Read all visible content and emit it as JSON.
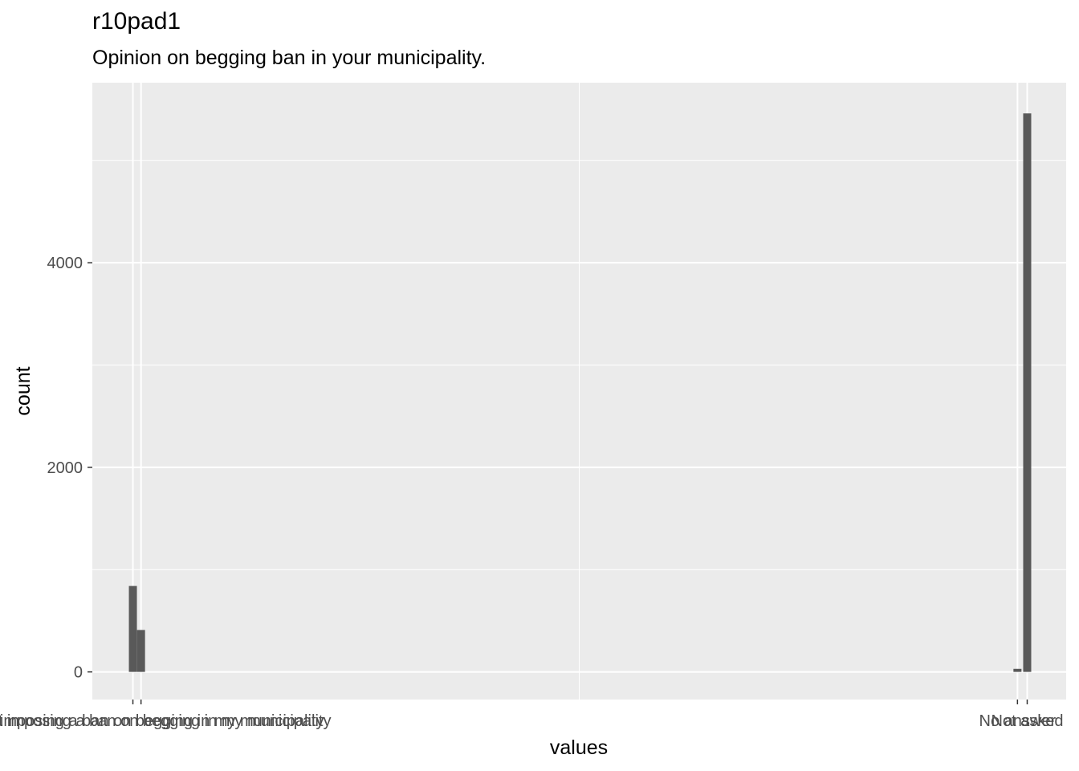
{
  "chart_data": {
    "type": "bar",
    "title": "r10pad1",
    "subtitle": "Opinion on begging ban in your municipality.",
    "xlabel": "values",
    "ylabel": "count",
    "y_ticks": [
      0,
      2000,
      4000
    ],
    "ylim": [
      -270,
      5760
    ],
    "x_range": [
      -0.5,
      11.5
    ],
    "grid": true,
    "bars": [
      {
        "x": 0,
        "value": 840
      },
      {
        "x": 0.1,
        "value": 410
      },
      {
        "x": 10.9,
        "value": 30
      },
      {
        "x": 11.02,
        "value": 5460
      }
    ],
    "x_ticks": [
      {
        "x": 0.0,
        "label": "support imposing a ban on begging in my municipality",
        "anchor": "middle"
      },
      {
        "x": 0.1,
        "label": "against imposing a ban on begging in my municipality",
        "anchor": "middle"
      },
      {
        "x": 10.9,
        "label": "No answer",
        "anchor": "middle"
      },
      {
        "x": 11.02,
        "label": "Not asked",
        "anchor": "middle"
      }
    ]
  }
}
